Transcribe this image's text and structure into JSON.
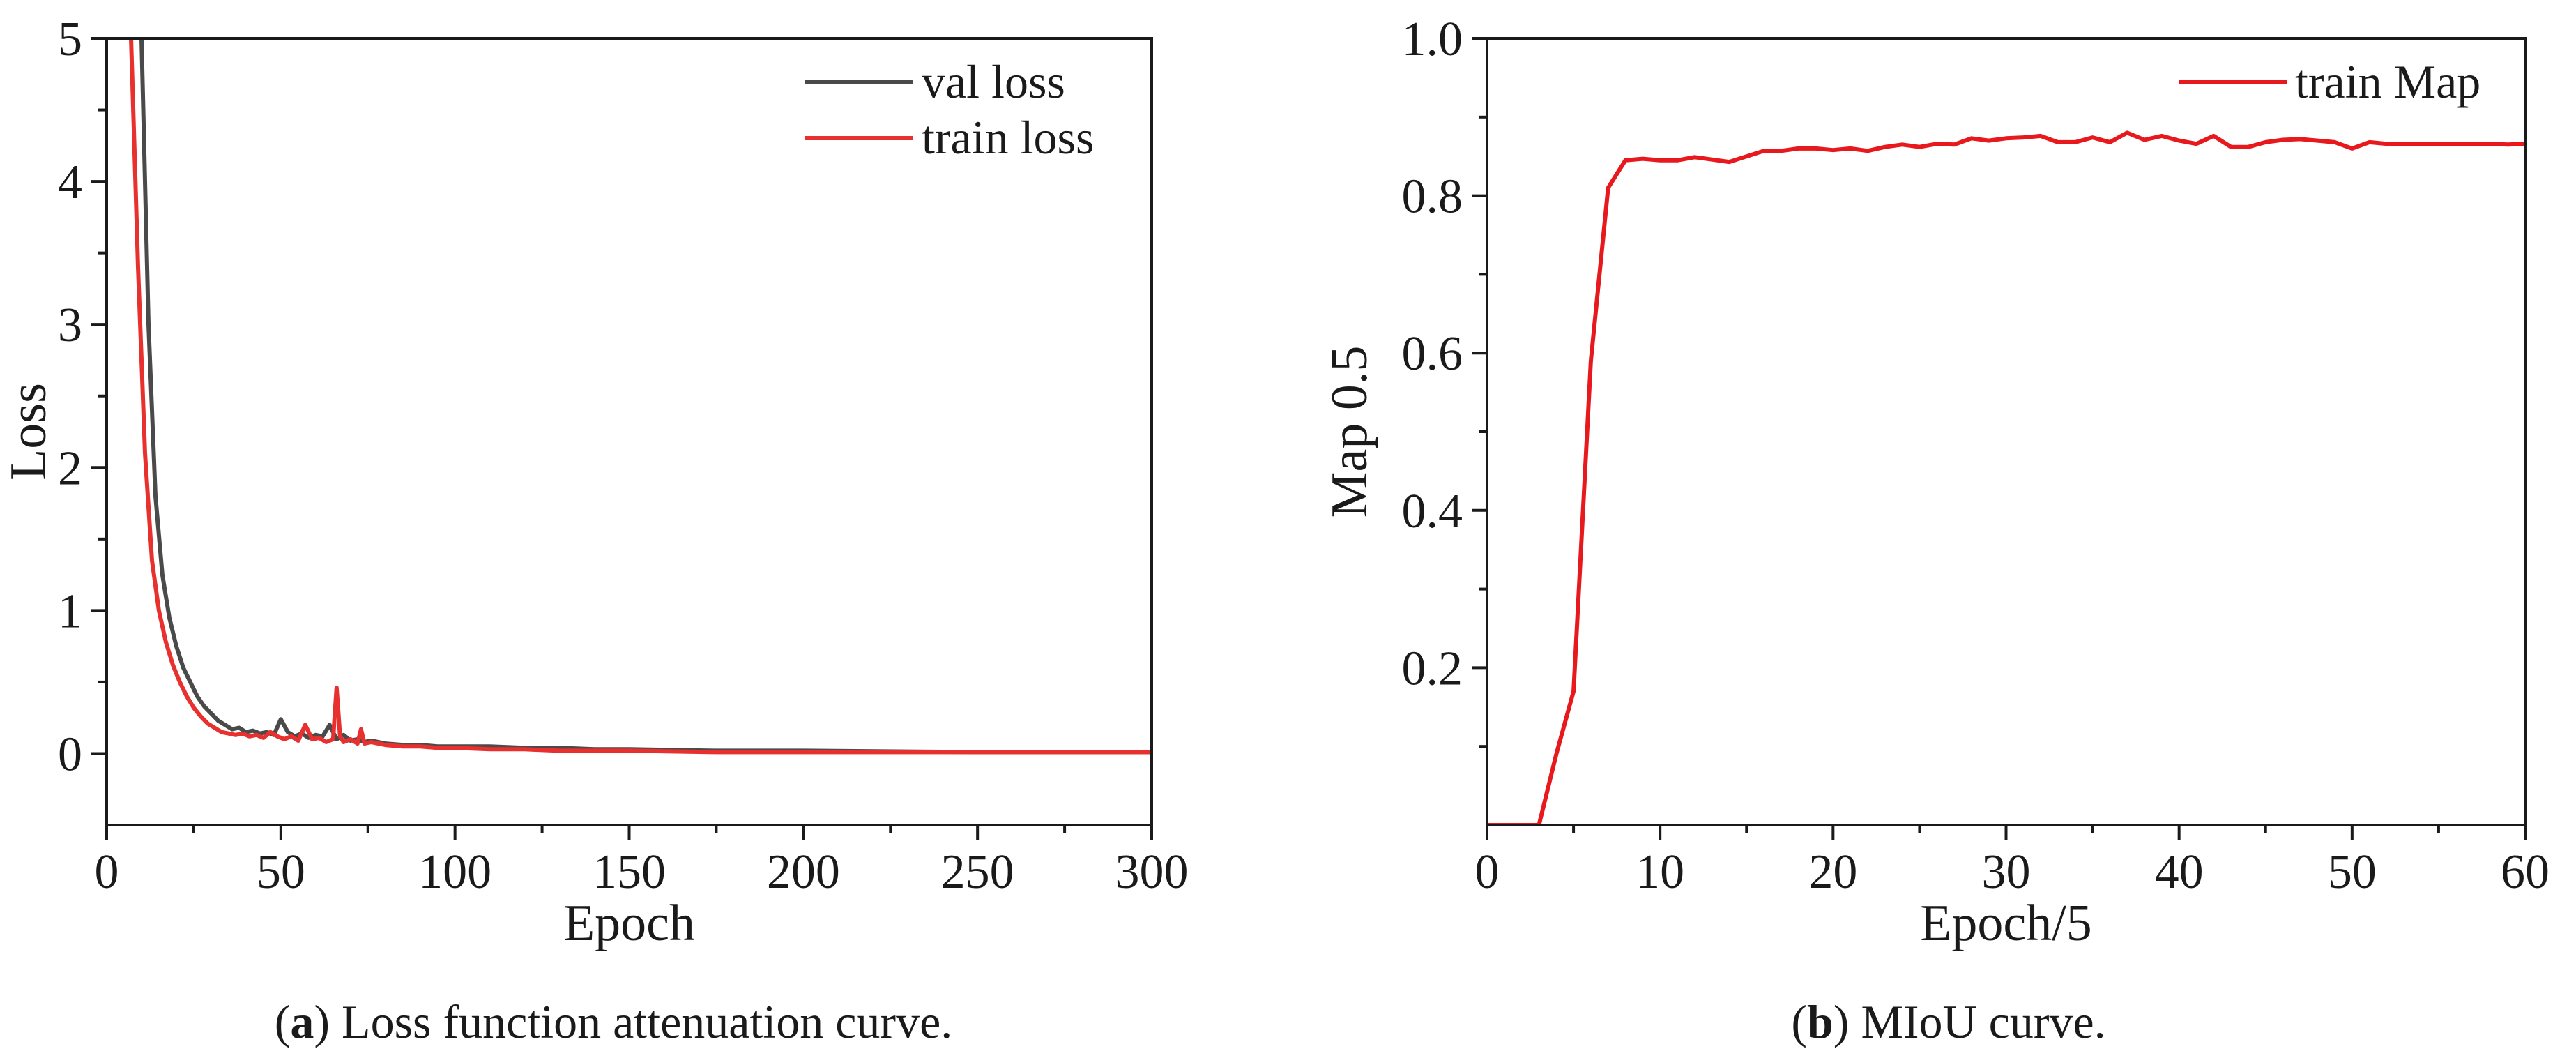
{
  "chart_data": [
    {
      "type": "line",
      "panel": "a",
      "caption_letter": "a",
      "caption_text": "Loss function attenuation curve.",
      "xlabel": "Epoch",
      "ylabel": "Loss",
      "xlim": [
        0,
        300
      ],
      "ylim": [
        -0.5,
        5
      ],
      "xticks": [
        0,
        50,
        100,
        150,
        200,
        250,
        300
      ],
      "yticks": [
        0,
        1,
        2,
        3,
        4,
        5
      ],
      "legend_position": "top-right",
      "series": [
        {
          "name": "val loss",
          "color": "#4a4a4a",
          "x": [
            10,
            12,
            14,
            16,
            18,
            20,
            22,
            24,
            26,
            28,
            30,
            32,
            34,
            36,
            38,
            40,
            42,
            44,
            46,
            48,
            50,
            52,
            54,
            56,
            58,
            60,
            62,
            64,
            66,
            68,
            70,
            72,
            74,
            76,
            80,
            85,
            90,
            95,
            100,
            110,
            120,
            130,
            140,
            150,
            175,
            200,
            250,
            300
          ],
          "values": [
            5.0,
            3.0,
            1.8,
            1.25,
            0.95,
            0.75,
            0.6,
            0.5,
            0.4,
            0.33,
            0.28,
            0.23,
            0.2,
            0.17,
            0.18,
            0.15,
            0.16,
            0.14,
            0.15,
            0.13,
            0.24,
            0.15,
            0.12,
            0.14,
            0.11,
            0.13,
            0.12,
            0.2,
            0.1,
            0.13,
            0.09,
            0.1,
            0.08,
            0.09,
            0.07,
            0.06,
            0.06,
            0.05,
            0.05,
            0.05,
            0.04,
            0.04,
            0.03,
            0.03,
            0.02,
            0.02,
            0.01,
            0.01
          ]
        },
        {
          "name": "train loss",
          "color": "#e8302e",
          "x": [
            7,
            9,
            11,
            13,
            15,
            17,
            19,
            21,
            23,
            25,
            27,
            29,
            31,
            33,
            35,
            37,
            39,
            41,
            43,
            45,
            47,
            49,
            51,
            53,
            55,
            57,
            59,
            61,
            63,
            65,
            66,
            67,
            68,
            70,
            72,
            73,
            74,
            76,
            80,
            85,
            90,
            95,
            100,
            110,
            120,
            130,
            140,
            150,
            175,
            200,
            250,
            300
          ],
          "values": [
            5.0,
            3.4,
            2.1,
            1.35,
            1.0,
            0.78,
            0.62,
            0.5,
            0.4,
            0.32,
            0.26,
            0.21,
            0.18,
            0.15,
            0.14,
            0.13,
            0.14,
            0.12,
            0.13,
            0.11,
            0.15,
            0.12,
            0.1,
            0.12,
            0.09,
            0.2,
            0.1,
            0.11,
            0.08,
            0.1,
            0.46,
            0.12,
            0.08,
            0.1,
            0.07,
            0.17,
            0.07,
            0.08,
            0.06,
            0.05,
            0.05,
            0.04,
            0.04,
            0.03,
            0.03,
            0.02,
            0.02,
            0.02,
            0.01,
            0.01,
            0.01,
            0.01
          ]
        }
      ]
    },
    {
      "type": "line",
      "panel": "b",
      "caption_letter": "b",
      "caption_text": "MIoU curve.",
      "xlabel": "Epoch/5",
      "ylabel": "Map 0.5",
      "xlim": [
        0,
        60
      ],
      "ylim": [
        0,
        1.0
      ],
      "xticks": [
        0,
        10,
        20,
        30,
        40,
        50,
        60
      ],
      "yticks": [
        0.2,
        0.4,
        0.6,
        0.8,
        1.0
      ],
      "ytick_labels": [
        "0.2",
        "0.4",
        "0.6",
        "0.8",
        "1.0"
      ],
      "legend_position": "top-right",
      "series": [
        {
          "name": "train Map",
          "color": "#e8191d",
          "x": [
            0,
            1,
            2,
            3,
            4,
            5,
            6,
            7,
            8,
            9,
            10,
            11,
            12,
            13,
            14,
            15,
            16,
            17,
            18,
            19,
            20,
            21,
            22,
            23,
            24,
            25,
            26,
            27,
            28,
            29,
            30,
            31,
            32,
            33,
            34,
            35,
            36,
            37,
            38,
            39,
            40,
            41,
            42,
            43,
            44,
            45,
            46,
            47,
            48,
            49,
            50,
            51,
            52,
            53,
            54,
            55,
            56,
            57,
            58,
            59,
            60
          ],
          "values": [
            0.0,
            0.0,
            0.0,
            0.0,
            0.09,
            0.17,
            0.59,
            0.81,
            0.845,
            0.847,
            0.845,
            0.845,
            0.849,
            0.846,
            0.843,
            0.85,
            0.857,
            0.857,
            0.86,
            0.86,
            0.858,
            0.86,
            0.857,
            0.862,
            0.865,
            0.862,
            0.866,
            0.865,
            0.873,
            0.87,
            0.873,
            0.874,
            0.876,
            0.868,
            0.868,
            0.874,
            0.868,
            0.88,
            0.871,
            0.876,
            0.87,
            0.866,
            0.876,
            0.862,
            0.862,
            0.868,
            0.871,
            0.872,
            0.87,
            0.868,
            0.86,
            0.868,
            0.866,
            0.866,
            0.866,
            0.866,
            0.866,
            0.866,
            0.866,
            0.865,
            0.866
          ]
        }
      ]
    }
  ]
}
